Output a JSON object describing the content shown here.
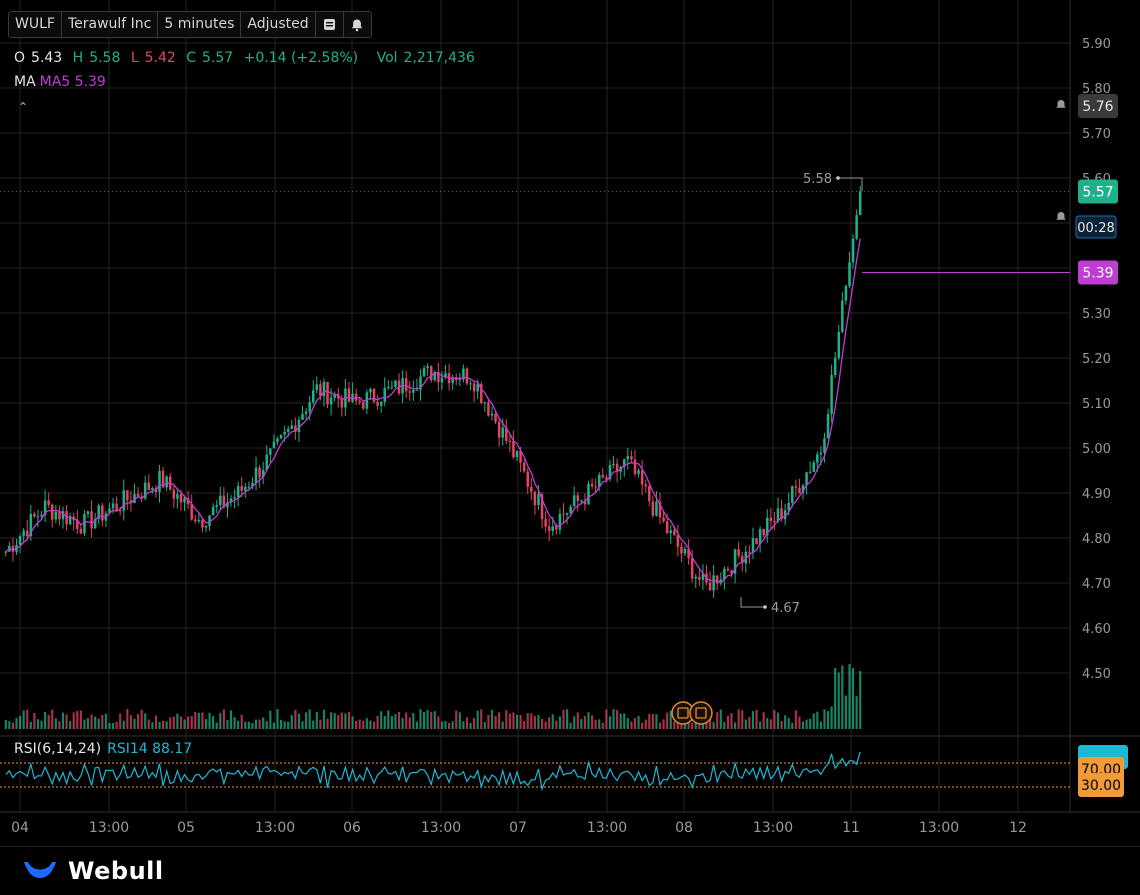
{
  "toolbar": {
    "symbol": "WULF",
    "company": "Terawulf Inc",
    "interval": "5 minutes",
    "adjust": "Adjusted"
  },
  "ohlc": {
    "o_label": "O",
    "o": "5.43",
    "h_label": "H",
    "h": "5.58",
    "l_label": "L",
    "l": "5.42",
    "c_label": "C",
    "c": "5.57",
    "change": "+0.14 (+2.58%)",
    "vol_label": "Vol",
    "vol": "2,217,436"
  },
  "ma": {
    "label": "MA",
    "value": "MA5 5.39"
  },
  "rsi": {
    "label": "RSI(6,14,24)",
    "value": "RSI14 88.17"
  },
  "brand": {
    "name": "Webull"
  },
  "colors": {
    "up": "#1fb28a",
    "down": "#e0465e",
    "ma": "#c03dd3",
    "rsi": "#1fb8d3",
    "level": "#f29a38",
    "bg": "#000000"
  },
  "chart_data": {
    "type": "candlestick",
    "price_axis": {
      "ticks": [
        5.9,
        5.8,
        5.7,
        5.6,
        5.5,
        5.4,
        5.3,
        5.2,
        5.1,
        5.0,
        4.9,
        4.8,
        4.7,
        4.6,
        4.5
      ]
    },
    "time_axis": {
      "ticks": [
        "04",
        "13:00",
        "05",
        "13:00",
        "06",
        "13:00",
        "07",
        "13:00",
        "08",
        "13:00",
        "11",
        "13:00",
        "12"
      ]
    },
    "close_path": [
      [
        "04",
        4.77
      ],
      [
        "04 midday",
        4.87
      ],
      [
        "13:00",
        4.83
      ],
      [
        "04 late",
        4.88
      ],
      [
        "05",
        4.93
      ],
      [
        "05 mid",
        4.84
      ],
      [
        "13:00",
        4.9
      ],
      [
        "05 late",
        5.0
      ],
      [
        "06",
        5.13
      ],
      [
        "06 mid",
        5.1
      ],
      [
        "13:00",
        5.13
      ],
      [
        "06 late",
        5.17
      ],
      [
        "07",
        5.16
      ],
      [
        "07 mid",
        5.0
      ],
      [
        "13:00",
        4.83
      ],
      [
        "07 late",
        4.9
      ],
      [
        "08",
        4.97
      ],
      [
        "08 mid",
        4.82
      ],
      [
        "08 low",
        4.69
      ],
      [
        "13:00",
        4.77
      ],
      [
        "08 late",
        4.86
      ],
      [
        "11",
        5.0
      ],
      [
        "11 last",
        5.57
      ]
    ],
    "high_marker": "5.58",
    "low_marker": "4.67",
    "price_labels": {
      "alert": "5.76",
      "last": "5.57",
      "countdown": "00:28",
      "ma5": "5.39"
    },
    "ma_series": "MA5",
    "rsi_levels": {
      "upper": "70.00",
      "lower": "30.00"
    },
    "rsi_last": 88.17
  }
}
